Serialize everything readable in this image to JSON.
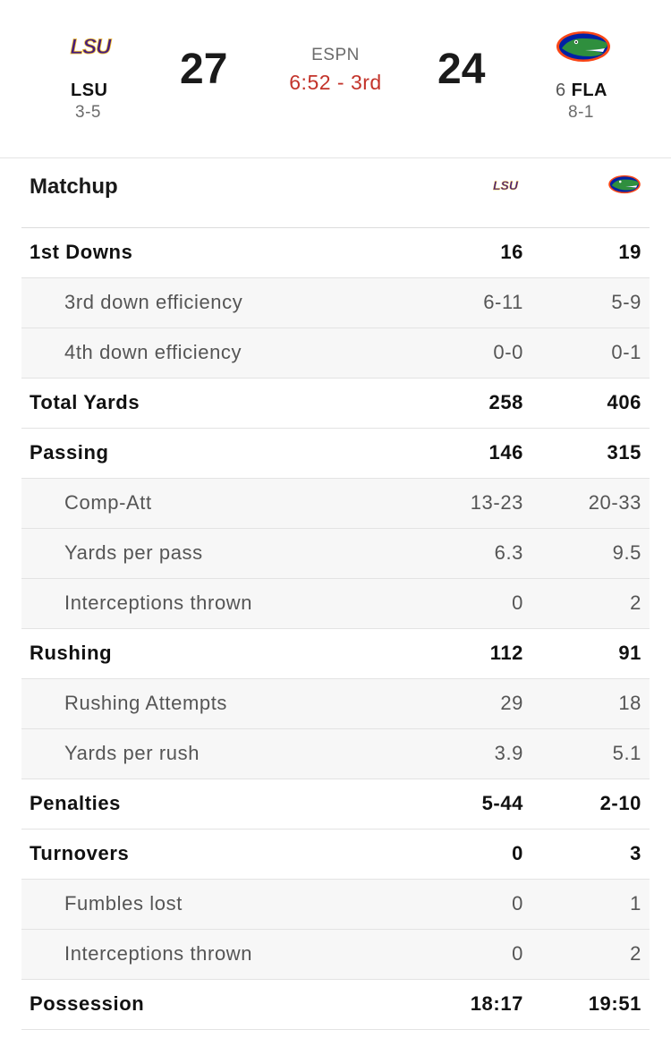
{
  "header": {
    "away": {
      "logo_text": "LSU",
      "name": "LSU",
      "record": "3-5",
      "score": "27",
      "color": "#461d7c"
    },
    "home": {
      "rank": "6",
      "name": "FLA",
      "record": "8-1",
      "score": "24",
      "color": "#0021a5"
    },
    "network": "ESPN",
    "clock": "6:52 - 3rd",
    "clock_color": "#c3332a"
  },
  "matchup": {
    "title": "Matchup",
    "columns": [
      {
        "team": "LSU",
        "icon": "lsu-logo-icon"
      },
      {
        "team": "FLA",
        "icon": "gator-logo-icon"
      }
    ]
  },
  "stats": [
    {
      "label": "1st Downs",
      "lsu": "16",
      "fla": "19",
      "type": "main"
    },
    {
      "label": "3rd down efficiency",
      "lsu": "6-11",
      "fla": "5-9",
      "type": "sub"
    },
    {
      "label": "4th down efficiency",
      "lsu": "0-0",
      "fla": "0-1",
      "type": "sub"
    },
    {
      "label": "Total Yards",
      "lsu": "258",
      "fla": "406",
      "type": "main"
    },
    {
      "label": "Passing",
      "lsu": "146",
      "fla": "315",
      "type": "main"
    },
    {
      "label": "Comp-Att",
      "lsu": "13-23",
      "fla": "20-33",
      "type": "sub"
    },
    {
      "label": "Yards per pass",
      "lsu": "6.3",
      "fla": "9.5",
      "type": "sub"
    },
    {
      "label": "Interceptions thrown",
      "lsu": "0",
      "fla": "2",
      "type": "sub"
    },
    {
      "label": "Rushing",
      "lsu": "112",
      "fla": "91",
      "type": "main"
    },
    {
      "label": "Rushing Attempts",
      "lsu": "29",
      "fla": "18",
      "type": "sub"
    },
    {
      "label": "Yards per rush",
      "lsu": "3.9",
      "fla": "5.1",
      "type": "sub"
    },
    {
      "label": "Penalties",
      "lsu": "5-44",
      "fla": "2-10",
      "type": "main"
    },
    {
      "label": "Turnovers",
      "lsu": "0",
      "fla": "3",
      "type": "main"
    },
    {
      "label": "Fumbles lost",
      "lsu": "0",
      "fla": "1",
      "type": "sub"
    },
    {
      "label": "Interceptions thrown",
      "lsu": "0",
      "fla": "2",
      "type": "sub"
    },
    {
      "label": "Possession",
      "lsu": "18:17",
      "fla": "19:51",
      "type": "main"
    }
  ]
}
